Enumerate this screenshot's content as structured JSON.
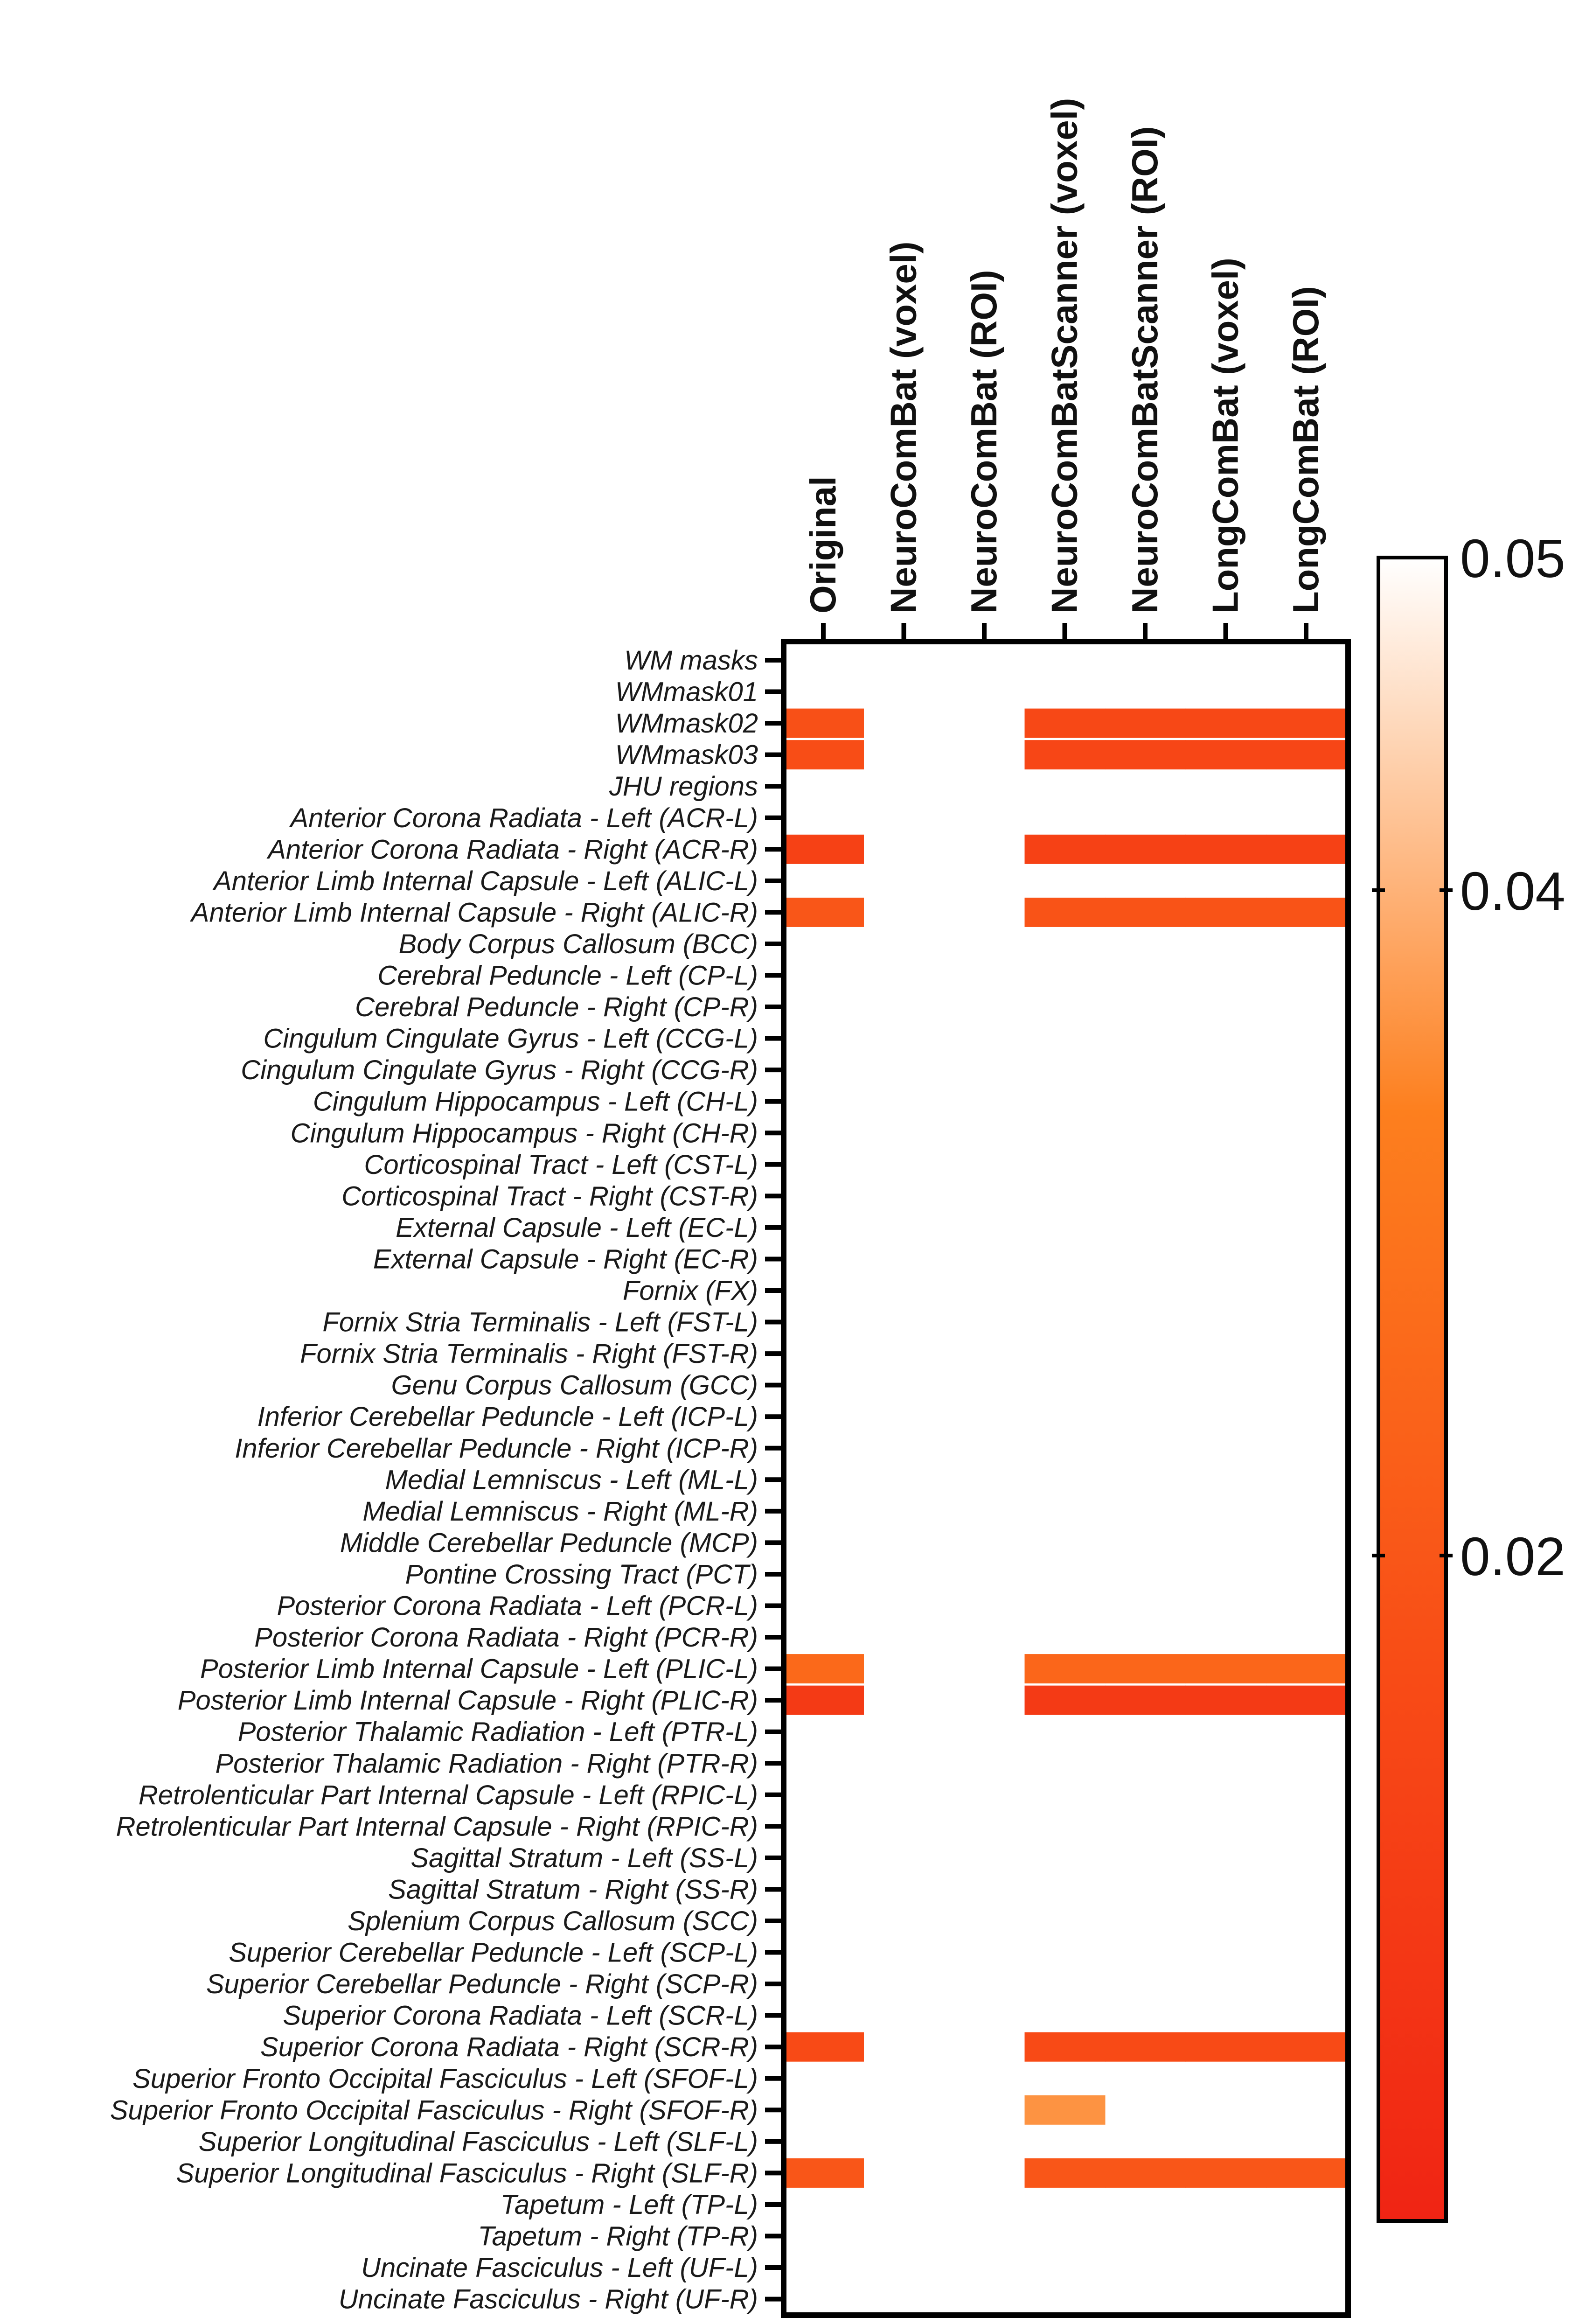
{
  "chart_data": {
    "type": "heatmap",
    "title": "",
    "columns": [
      "Original",
      "NeuroComBat (voxel)",
      "NeuroComBat (ROI)",
      "NeuroComBatScanner (voxel)",
      "NeuroComBatScanner (ROI)",
      "LongComBat (voxel)",
      "LongComBat (ROI)"
    ],
    "rows": [
      "WM masks",
      "WMmask01",
      "WMmask02",
      "WMmask03",
      "JHU regions",
      "Anterior Corona Radiata - Left (ACR-L)",
      "Anterior Corona Radiata - Right (ACR-R)",
      "Anterior Limb Internal Capsule - Left (ALIC-L)",
      "Anterior Limb Internal Capsule - Right (ALIC-R)",
      "Body Corpus Callosum (BCC)",
      "Cerebral Peduncle - Left (CP-L)",
      "Cerebral Peduncle - Right (CP-R)",
      "Cingulum Cingulate Gyrus - Left (CCG-L)",
      "Cingulum Cingulate Gyrus - Right (CCG-R)",
      "Cingulum Hippocampus - Left (CH-L)",
      "Cingulum Hippocampus - Right (CH-R)",
      "Corticospinal Tract - Left (CST-L)",
      "Corticospinal Tract - Right (CST-R)",
      "External Capsule - Left (EC-L)",
      "External Capsule - Right (EC-R)",
      "Fornix (FX)",
      "Fornix Stria Terminalis - Left (FST-L)",
      "Fornix Stria Terminalis - Right (FST-R)",
      "Genu Corpus Callosum (GCC)",
      "Inferior Cerebellar Peduncle - Left (ICP-L)",
      "Inferior Cerebellar Peduncle - Right (ICP-R)",
      "Medial Lemniscus - Left (ML-L)",
      "Medial Lemniscus - Right (ML-R)",
      "Middle Cerebellar Peduncle (MCP)",
      "Pontine Crossing Tract (PCT)",
      "Posterior Corona Radiata - Left (PCR-L)",
      "Posterior Corona Radiata - Right (PCR-R)",
      "Posterior Limb Internal Capsule - Left (PLIC-L)",
      "Posterior Limb Internal Capsule - Right (PLIC-R)",
      "Posterior Thalamic Radiation - Left (PTR-L)",
      "Posterior Thalamic Radiation - Right (PTR-R)",
      "Retrolenticular Part Internal Capsule - Left (RPIC-L)",
      "Retrolenticular Part Internal Capsule - Right (RPIC-R)",
      "Sagittal Stratum - Left (SS-L)",
      "Sagittal Stratum - Right (SS-R)",
      "Splenium Corpus Callosum (SCC)",
      "Superior Cerebellar Peduncle - Left (SCP-L)",
      "Superior Cerebellar Peduncle - Right (SCP-R)",
      "Superior Corona Radiata - Left (SCR-L)",
      "Superior Corona Radiata - Right (SCR-R)",
      "Superior Fronto Occipital Fasciculus - Left (SFOF-L)",
      "Superior Fronto Occipital Fasciculus - Right (SFOF-R)",
      "Superior Longitudinal Fasciculus - Left (SLF-L)",
      "Superior Longitudinal Fasciculus - Right (SLF-R)",
      "Tapetum - Left (TP-L)",
      "Tapetum - Right (TP-R)",
      "Uncinate Fasciculus - Left (UF-L)",
      "Uncinate Fasciculus - Right (UF-R)"
    ],
    "cells": [
      {
        "row": 2,
        "col": 0,
        "value": 0.018
      },
      {
        "row": 2,
        "col": 3,
        "value": 0.015
      },
      {
        "row": 2,
        "col": 4,
        "value": 0.015
      },
      {
        "row": 2,
        "col": 5,
        "value": 0.015
      },
      {
        "row": 2,
        "col": 6,
        "value": 0.015
      },
      {
        "row": 3,
        "col": 0,
        "value": 0.017
      },
      {
        "row": 3,
        "col": 3,
        "value": 0.014
      },
      {
        "row": 3,
        "col": 4,
        "value": 0.014
      },
      {
        "row": 3,
        "col": 5,
        "value": 0.014
      },
      {
        "row": 3,
        "col": 6,
        "value": 0.014
      },
      {
        "row": 6,
        "col": 0,
        "value": 0.012
      },
      {
        "row": 6,
        "col": 3,
        "value": 0.012
      },
      {
        "row": 6,
        "col": 4,
        "value": 0.012
      },
      {
        "row": 6,
        "col": 5,
        "value": 0.012
      },
      {
        "row": 6,
        "col": 6,
        "value": 0.012
      },
      {
        "row": 8,
        "col": 0,
        "value": 0.02
      },
      {
        "row": 8,
        "col": 3,
        "value": 0.019
      },
      {
        "row": 8,
        "col": 4,
        "value": 0.019
      },
      {
        "row": 8,
        "col": 5,
        "value": 0.019
      },
      {
        "row": 8,
        "col": 6,
        "value": 0.019
      },
      {
        "row": 32,
        "col": 0,
        "value": 0.026
      },
      {
        "row": 32,
        "col": 3,
        "value": 0.025
      },
      {
        "row": 32,
        "col": 4,
        "value": 0.025
      },
      {
        "row": 32,
        "col": 5,
        "value": 0.025
      },
      {
        "row": 32,
        "col": 6,
        "value": 0.025
      },
      {
        "row": 33,
        "col": 0,
        "value": 0.009
      },
      {
        "row": 33,
        "col": 3,
        "value": 0.009
      },
      {
        "row": 33,
        "col": 4,
        "value": 0.009
      },
      {
        "row": 33,
        "col": 5,
        "value": 0.009
      },
      {
        "row": 33,
        "col": 6,
        "value": 0.009
      },
      {
        "row": 44,
        "col": 0,
        "value": 0.016
      },
      {
        "row": 44,
        "col": 3,
        "value": 0.016
      },
      {
        "row": 44,
        "col": 4,
        "value": 0.016
      },
      {
        "row": 44,
        "col": 5,
        "value": 0.016
      },
      {
        "row": 44,
        "col": 6,
        "value": 0.016
      },
      {
        "row": 46,
        "col": 3,
        "value": 0.036
      },
      {
        "row": 48,
        "col": 0,
        "value": 0.02
      },
      {
        "row": 48,
        "col": 3,
        "value": 0.02
      },
      {
        "row": 48,
        "col": 4,
        "value": 0.02
      },
      {
        "row": 48,
        "col": 5,
        "value": 0.02
      },
      {
        "row": 48,
        "col": 6,
        "value": 0.02
      }
    ],
    "colorbar": {
      "min": 0.0,
      "max": 0.05,
      "ticks": [
        0.02,
        0.04,
        0.05
      ],
      "tick_labels": [
        "0.02",
        "0.04",
        "0.05"
      ],
      "colors": [
        "#f02414",
        "#f84c16",
        "#fd7f1e",
        "#ffffff"
      ]
    },
    "colors": {
      "background": "#ffffff",
      "frame": "#000000",
      "label": "#1a1a1a"
    }
  }
}
